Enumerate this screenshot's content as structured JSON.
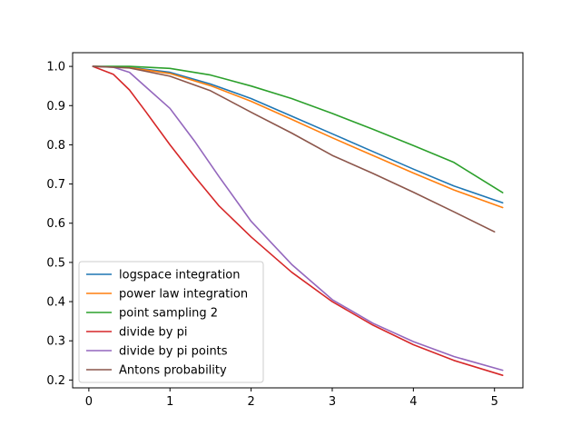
{
  "chart_data": {
    "type": "line",
    "title": "",
    "xlabel": "",
    "ylabel": "",
    "xlim": [
      -0.2,
      5.35
    ],
    "ylim": [
      0.18,
      1.035
    ],
    "xticks": [
      0,
      1,
      2,
      3,
      4,
      5
    ],
    "yticks": [
      0.2,
      0.3,
      0.4,
      0.5,
      0.6,
      0.7,
      0.8,
      0.9,
      1.0
    ],
    "xtick_labels": [
      "0",
      "1",
      "2",
      "3",
      "4",
      "5"
    ],
    "ytick_labels": [
      "0.2",
      "0.3",
      "0.4",
      "0.5",
      "0.6",
      "0.7",
      "0.8",
      "0.9",
      "1.0"
    ],
    "grid": false,
    "legend_position": "lower-left",
    "series": [
      {
        "name": "logspace integration",
        "color": "#1f77b4",
        "x": [
          0.05,
          0.5,
          1.0,
          1.5,
          2.0,
          2.5,
          3.0,
          3.5,
          4.0,
          4.5,
          5.1
        ],
        "y": [
          1.0,
          0.998,
          0.985,
          0.955,
          0.918,
          0.873,
          0.828,
          0.783,
          0.738,
          0.695,
          0.652
        ]
      },
      {
        "name": "power law integration",
        "color": "#ff7f0e",
        "x": [
          0.05,
          0.5,
          1.0,
          1.5,
          2.0,
          2.5,
          3.0,
          3.5,
          4.0,
          4.5,
          5.1
        ],
        "y": [
          1.0,
          0.997,
          0.982,
          0.951,
          0.911,
          0.865,
          0.818,
          0.773,
          0.728,
          0.685,
          0.64
        ]
      },
      {
        "name": "point sampling 2",
        "color": "#2ca02c",
        "x": [
          0.05,
          0.5,
          1.0,
          1.5,
          2.0,
          2.5,
          3.0,
          3.5,
          4.0,
          4.5,
          5.1
        ],
        "y": [
          1.0,
          1.0,
          0.995,
          0.978,
          0.95,
          0.918,
          0.88,
          0.84,
          0.798,
          0.755,
          0.678
        ]
      },
      {
        "name": "divide by pi",
        "color": "#d62728",
        "x": [
          0.05,
          0.3,
          0.5,
          0.7,
          1.0,
          1.3,
          1.6,
          2.0,
          2.5,
          3.0,
          3.5,
          4.0,
          4.5,
          5.1
        ],
        "y": [
          1.0,
          0.98,
          0.94,
          0.885,
          0.8,
          0.72,
          0.645,
          0.565,
          0.475,
          0.4,
          0.34,
          0.29,
          0.25,
          0.212
        ]
      },
      {
        "name": "divide by pi points",
        "color": "#9467bd",
        "x": [
          0.05,
          0.3,
          0.5,
          0.7,
          1.0,
          1.3,
          1.6,
          2.0,
          2.5,
          3.0,
          3.5,
          4.0,
          4.5,
          5.1
        ],
        "y": [
          1.0,
          0.998,
          0.985,
          0.948,
          0.893,
          0.81,
          0.72,
          0.605,
          0.495,
          0.405,
          0.345,
          0.298,
          0.26,
          0.225
        ]
      },
      {
        "name": "Antons probability",
        "color": "#8c564b",
        "x": [
          0.05,
          0.5,
          1.0,
          1.5,
          2.0,
          2.5,
          3.0,
          3.5,
          4.0,
          4.5,
          5.0
        ],
        "y": [
          1.0,
          0.996,
          0.975,
          0.938,
          0.883,
          0.83,
          0.773,
          0.727,
          0.679,
          0.629,
          0.578
        ]
      }
    ]
  }
}
